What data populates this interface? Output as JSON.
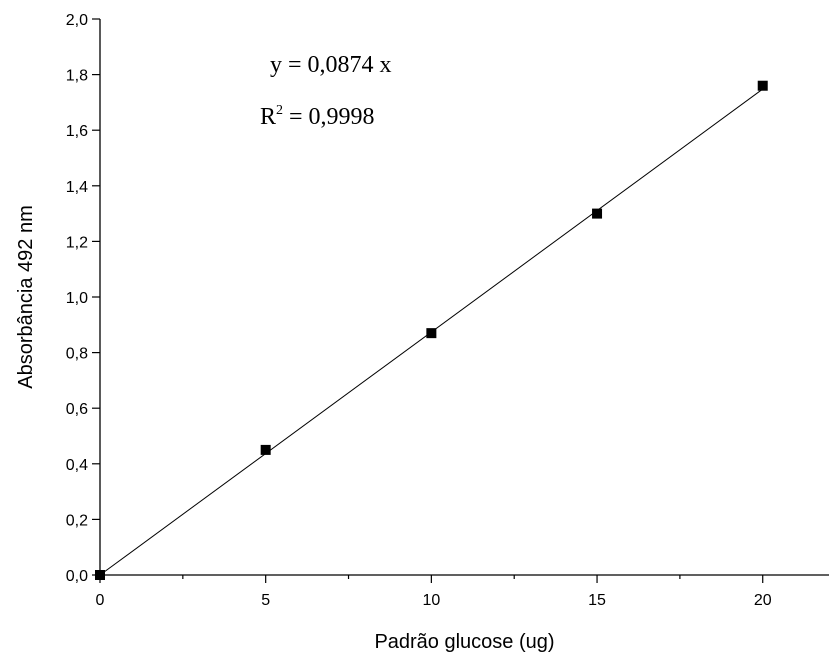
{
  "chart_data": {
    "type": "scatter",
    "title": "",
    "xlabel": "Padrão glucose (ug)",
    "ylabel": "Absorbância 492 nm",
    "xlim": [
      0,
      22
    ],
    "ylim": [
      0,
      2.0
    ],
    "x_major_ticks": [
      0,
      5,
      10,
      15,
      20
    ],
    "x_tick_labels": [
      "0",
      "5",
      "10",
      "15",
      "20"
    ],
    "x_minor_ticks": [
      2.5,
      7.5,
      12.5,
      17.5
    ],
    "y_major_ticks": [
      0,
      0.2,
      0.4,
      0.6,
      0.8,
      1.0,
      1.2,
      1.4,
      1.6,
      1.8,
      2.0
    ],
    "y_tick_labels": [
      "0,0",
      "0,2",
      "0,4",
      "0,6",
      "0,8",
      "1,0",
      "1,2",
      "1,4",
      "1,6",
      "1,8",
      "2,0"
    ],
    "grid": false,
    "series": [
      {
        "x": [
          0,
          5,
          10,
          15,
          20
        ],
        "y": [
          0,
          0.45,
          0.87,
          1.3,
          1.76
        ],
        "marker": "square",
        "color": "#000000"
      }
    ],
    "fit": {
      "slope": 0.0874,
      "x_range": [
        0,
        20
      ]
    },
    "annotations": {
      "equation": "y = 0,0874 x",
      "r2_prefix": "R",
      "r2_exponent": "2",
      "r2_suffix": " = 0,9998"
    }
  }
}
